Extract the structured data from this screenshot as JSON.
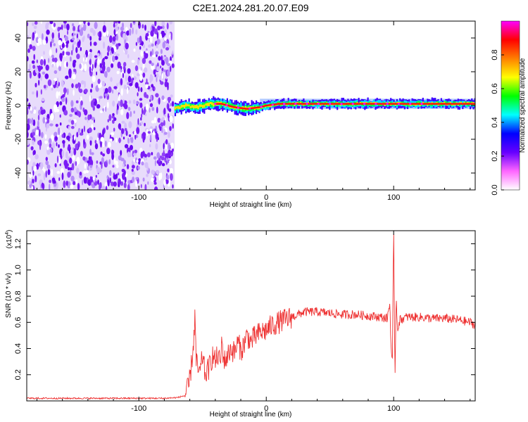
{
  "title": "C2E1.2024.281.20.07.E09",
  "chart_data": [
    {
      "type": "heatmap",
      "xlabel": "Height of straight line (km)",
      "ylabel": "Frequency (Hz)",
      "xlim": [
        -188,
        164
      ],
      "ylim": [
        -50,
        50
      ],
      "xticks": [
        -100,
        0,
        100
      ],
      "yticks": [
        -40,
        -20,
        0,
        20,
        40
      ],
      "noise_region_x": [
        -188,
        -72
      ],
      "signal_line": {
        "x": [
          -72,
          -65,
          -55,
          -45,
          -35,
          -25,
          -15,
          -5,
          0,
          10,
          20,
          40,
          60,
          80,
          90,
          100,
          120,
          164
        ],
        "freq_hz": [
          -2,
          0,
          -1,
          1,
          1,
          -1,
          -2,
          -1,
          0,
          1,
          1,
          1,
          1,
          1,
          1,
          1,
          1,
          1
        ]
      },
      "colorbar": {
        "label": "Normalized spectral amplitude",
        "range": [
          0,
          1
        ],
        "ticks": [
          "0.0",
          "0.2",
          "0.4",
          "0.6",
          "0.8"
        ],
        "colors": [
          "#ffffff",
          "#ff66ff",
          "#6600ff",
          "#0000ff",
          "#00ffff",
          "#00ff00",
          "#ffff00",
          "#ff8000",
          "#ff0000",
          "#ff00ff"
        ]
      }
    },
    {
      "type": "line",
      "xlabel": "Height of straight line (km)",
      "ylabel": "SNR (10 * v/v)",
      "y_multiplier": "(x10^4)",
      "xlim": [
        -188,
        164
      ],
      "ylim": [
        0,
        1.3
      ],
      "xticks": [
        -100,
        0,
        100
      ],
      "yticks": [
        0.2,
        0.4,
        0.6,
        0.8,
        1.0,
        1.2
      ],
      "series": [
        {
          "color": "#ee3333",
          "x": [
            -188,
            -160,
            -140,
            -120,
            -100,
            -80,
            -70,
            -64,
            -61,
            -59,
            -57,
            -56,
            -55,
            -54,
            -52,
            -50,
            -48,
            -45,
            -42,
            -40,
            -38,
            -36,
            -35,
            -33,
            -30,
            -28,
            -25,
            -22,
            -20,
            -18,
            -15,
            -12,
            -10,
            -5,
            0,
            5,
            10,
            15,
            20,
            25,
            30,
            40,
            50,
            60,
            70,
            80,
            90,
            95,
            97,
            98,
            99,
            100,
            101,
            102,
            103,
            105,
            110,
            120,
            130,
            140,
            150,
            160,
            164
          ],
          "values": [
            0.02,
            0.02,
            0.02,
            0.02,
            0.02,
            0.02,
            0.025,
            0.04,
            0.1,
            0.25,
            0.45,
            0.65,
            0.3,
            0.25,
            0.2,
            0.35,
            0.2,
            0.25,
            0.35,
            0.3,
            0.35,
            0.28,
            0.45,
            0.3,
            0.35,
            0.4,
            0.37,
            0.45,
            0.38,
            0.42,
            0.5,
            0.45,
            0.48,
            0.52,
            0.54,
            0.58,
            0.6,
            0.62,
            0.64,
            0.66,
            0.68,
            0.68,
            0.67,
            0.66,
            0.66,
            0.65,
            0.64,
            0.63,
            0.75,
            0.4,
            0.3,
            1.3,
            0.18,
            0.8,
            0.55,
            0.62,
            0.64,
            0.64,
            0.63,
            0.63,
            0.62,
            0.6,
            0.58
          ]
        }
      ]
    }
  ]
}
